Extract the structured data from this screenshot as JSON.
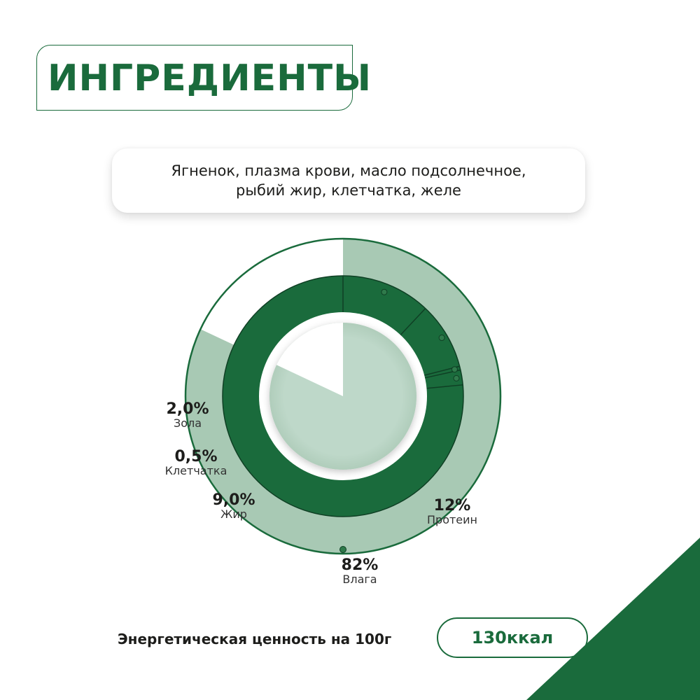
{
  "header": {
    "title": "ИНГРЕДИЕНТЫ"
  },
  "ingredients": {
    "line1": "Ягненок, плазма крови, масло подсолнечное,",
    "line2": "рыбий жир, клетчатка, желе"
  },
  "chart_data": {
    "type": "pie",
    "title": "",
    "outer_ring": {
      "name": "Влага",
      "value": 82,
      "unit": "%"
    },
    "inner_ring": [
      {
        "name": "Протеин",
        "value": 12,
        "unit": "%"
      },
      {
        "name": "Жир",
        "value": 9.0,
        "unit": "%"
      },
      {
        "name": "Клетчатка",
        "value": 0.5,
        "unit": "%"
      },
      {
        "name": "Зола",
        "value": 2.0,
        "unit": "%"
      }
    ],
    "labels": {
      "moisture": {
        "value": "82%",
        "name": "Влага"
      },
      "protein": {
        "value": "12%",
        "name": "Протеин"
      },
      "fat": {
        "value": "9,0%",
        "name": "Жир"
      },
      "fiber": {
        "value": "0,5%",
        "name": "Клетчатка"
      },
      "ash": {
        "value": "2,0%",
        "name": "Зола"
      }
    }
  },
  "energy": {
    "label": "Энергетическая ценность на 100г",
    "value": "130ккал"
  },
  "colors": {
    "brand_green": "#1a6b3c",
    "light_green": "#a8c9b4",
    "pale_green": "#bed8c9",
    "text": "#1d1d1b"
  }
}
